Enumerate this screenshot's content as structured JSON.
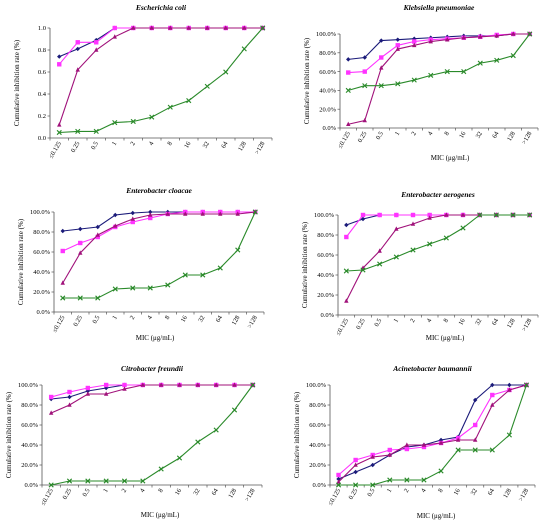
{
  "figure": {
    "x_categories": [
      "≤0.125",
      "0.25",
      "0.5",
      "1",
      "2",
      "4",
      "8",
      "16",
      "32",
      "64",
      "128",
      ">128"
    ]
  },
  "series_styles": [
    {
      "color": "#1b1b7a",
      "marker": "diamond"
    },
    {
      "color": "#ff33ff",
      "marker": "square"
    },
    {
      "color": "#a0117a",
      "marker": "triangle"
    },
    {
      "color": "#2a8a2a",
      "marker": "x"
    }
  ],
  "chart_data": [
    {
      "type": "line",
      "title": "Escherichia coli",
      "xlabel": "",
      "ylabel": "Cumulative inhibition rate (%)",
      "ytick_labels": [
        "0.0",
        "0.2",
        "0.4",
        "0.6",
        "0.8",
        "1.0"
      ],
      "ylim": [
        0,
        1
      ],
      "categories": [
        "≤0.125",
        "0.25",
        "0.5",
        "1",
        "2",
        "4",
        "8",
        "16",
        "32",
        "64",
        "128",
        ">128"
      ],
      "series": [
        {
          "values": [
            0.74,
            0.81,
            0.89,
            1.0,
            1.0,
            1.0,
            1.0,
            1.0,
            1.0,
            1.0,
            1.0,
            1.0
          ]
        },
        {
          "values": [
            0.67,
            0.87,
            0.87,
            1.0,
            1.0,
            1.0,
            1.0,
            1.0,
            1.0,
            1.0,
            1.0,
            1.0
          ]
        },
        {
          "values": [
            0.12,
            0.62,
            0.8,
            0.92,
            1.0,
            1.0,
            1.0,
            1.0,
            1.0,
            1.0,
            1.0,
            1.0
          ]
        },
        {
          "values": [
            0.05,
            0.06,
            0.06,
            0.14,
            0.15,
            0.19,
            0.28,
            0.34,
            0.47,
            0.6,
            0.81,
            1.0
          ]
        }
      ]
    },
    {
      "type": "line",
      "title": "Klebsiella pneumoniae",
      "xlabel": "MIC (μg/mL)",
      "ylabel": "Cumulative inhibition rate (%)",
      "ytick_labels": [
        "0.0%",
        "20.0%",
        "40.0%",
        "60.0%",
        "80.0%",
        "100.0%"
      ],
      "ylim": [
        0,
        1
      ],
      "categories": [
        "≤0.125",
        "0.25",
        "0.5",
        "1",
        "2",
        "4",
        "8",
        "16",
        "32",
        "64",
        "128",
        ">128"
      ],
      "series": [
        {
          "values": [
            0.73,
            0.75,
            0.93,
            0.94,
            0.95,
            0.96,
            0.97,
            0.98,
            0.98,
            0.98,
            1.0,
            1.0
          ]
        },
        {
          "values": [
            0.59,
            0.6,
            0.75,
            0.88,
            0.92,
            0.94,
            0.95,
            0.96,
            0.97,
            0.99,
            1.0,
            1.0
          ]
        },
        {
          "values": [
            0.04,
            0.08,
            0.64,
            0.84,
            0.88,
            0.92,
            0.94,
            0.96,
            0.97,
            0.98,
            1.0,
            1.0
          ]
        },
        {
          "values": [
            0.4,
            0.45,
            0.45,
            0.47,
            0.51,
            0.56,
            0.6,
            0.6,
            0.69,
            0.72,
            0.77,
            1.0
          ]
        }
      ]
    },
    {
      "type": "line",
      "title": "Enterobacter cloacae",
      "xlabel": "MIC (μg/mL)",
      "ylabel": "Cumulative inhibition rate (%)",
      "ytick_labels": [
        "0.0%",
        "20.0%",
        "40.0%",
        "60.0%",
        "80.0%",
        "100.0%"
      ],
      "ylim": [
        0,
        1
      ],
      "categories": [
        "≤0.125",
        "0.25",
        "0.5",
        "1",
        "2",
        "4",
        "8",
        "16",
        "32",
        "64",
        "128",
        ">128"
      ],
      "series": [
        {
          "values": [
            0.81,
            0.83,
            0.85,
            0.97,
            0.99,
            1.0,
            1.0,
            1.0,
            1.0,
            1.0,
            1.0,
            1.0
          ]
        },
        {
          "values": [
            0.61,
            0.69,
            0.75,
            0.85,
            0.9,
            0.94,
            0.98,
            1.0,
            1.0,
            1.0,
            1.0,
            1.0
          ]
        },
        {
          "values": [
            0.29,
            0.59,
            0.77,
            0.86,
            0.93,
            0.97,
            0.98,
            0.98,
            0.98,
            0.98,
            0.98,
            1.0
          ]
        },
        {
          "values": [
            0.14,
            0.14,
            0.14,
            0.23,
            0.24,
            0.24,
            0.27,
            0.37,
            0.37,
            0.44,
            0.62,
            1.0
          ]
        }
      ]
    },
    {
      "type": "line",
      "title": "Enterobacter aerogenes",
      "xlabel": "MIC (μg/mL)",
      "ylabel": "Cumulative inhibition rate (%)",
      "ytick_labels": [
        "0.0%",
        "20.0%",
        "40.0%",
        "60.0%",
        "80.0%",
        "100.0%"
      ],
      "ylim": [
        0,
        1
      ],
      "categories": [
        "≤0.125",
        "0.25",
        "0.5",
        "1",
        "2",
        "4",
        "8",
        "16",
        "32",
        "64",
        "128",
        ">128"
      ],
      "series": [
        {
          "values": [
            0.9,
            0.96,
            1.0,
            1.0,
            1.0,
            1.0,
            1.0,
            1.0,
            1.0,
            1.0,
            1.0,
            1.0
          ]
        },
        {
          "values": [
            0.78,
            1.0,
            1.0,
            1.0,
            1.0,
            1.0,
            1.0,
            1.0,
            1.0,
            1.0,
            1.0,
            1.0
          ]
        },
        {
          "values": [
            0.14,
            0.47,
            0.64,
            0.86,
            0.91,
            0.97,
            1.0,
            1.0,
            1.0,
            1.0,
            1.0,
            1.0
          ]
        },
        {
          "values": [
            0.44,
            0.45,
            0.51,
            0.58,
            0.65,
            0.71,
            0.77,
            0.87,
            1.0,
            1.0,
            1.0,
            1.0
          ]
        }
      ]
    },
    {
      "type": "line",
      "title": "Citrobacter freundii",
      "xlabel": "MIC (μg/mL)",
      "ylabel": "Cumulative inhibition rate (%)",
      "ytick_labels": [
        "0.0%",
        "20.0%",
        "40.0%",
        "60.0%",
        "80.0%",
        "100.0%"
      ],
      "ylim": [
        0,
        1
      ],
      "categories": [
        "≤0.125",
        "0.25",
        "0.5",
        "1",
        "2",
        "4",
        "8",
        "16",
        "32",
        "64",
        "128",
        ">128"
      ],
      "series": [
        {
          "values": [
            0.86,
            0.88,
            0.94,
            0.97,
            1.0,
            1.0,
            1.0,
            1.0,
            1.0,
            1.0,
            1.0,
            1.0
          ]
        },
        {
          "values": [
            0.88,
            0.93,
            0.97,
            1.0,
            1.0,
            1.0,
            1.0,
            1.0,
            1.0,
            1.0,
            1.0,
            1.0
          ]
        },
        {
          "values": [
            0.72,
            0.8,
            0.91,
            0.91,
            0.96,
            1.0,
            1.0,
            1.0,
            1.0,
            1.0,
            1.0,
            1.0
          ]
        },
        {
          "values": [
            0.0,
            0.04,
            0.04,
            0.04,
            0.04,
            0.04,
            0.16,
            0.27,
            0.43,
            0.55,
            0.75,
            1.0
          ]
        }
      ]
    },
    {
      "type": "line",
      "title": "Acinetobacter baumannii",
      "xlabel": "MIC (μg/mL)",
      "ylabel": "Cumulative inhibition rate (%)",
      "ytick_labels": [
        "0.0%",
        "20.0%",
        "40.0%",
        "60.0%",
        "80.0%",
        "100.0%"
      ],
      "ylim": [
        0,
        1
      ],
      "categories": [
        "≤0.125",
        "0.25",
        "0.5",
        "1",
        "2",
        "4",
        "8",
        "16",
        "32",
        "64",
        "128",
        ">128"
      ],
      "series": [
        {
          "values": [
            0.06,
            0.13,
            0.2,
            0.3,
            0.38,
            0.4,
            0.45,
            0.48,
            0.85,
            1.0,
            1.0,
            1.0
          ]
        },
        {
          "values": [
            0.1,
            0.25,
            0.3,
            0.35,
            0.36,
            0.38,
            0.42,
            0.47,
            0.6,
            0.9,
            0.95,
            1.0
          ]
        },
        {
          "values": [
            0.03,
            0.2,
            0.28,
            0.3,
            0.4,
            0.4,
            0.42,
            0.45,
            0.45,
            0.8,
            0.95,
            1.0
          ]
        },
        {
          "values": [
            0.0,
            0.0,
            0.0,
            0.05,
            0.05,
            0.05,
            0.14,
            0.35,
            0.35,
            0.35,
            0.5,
            1.0
          ]
        }
      ]
    }
  ]
}
